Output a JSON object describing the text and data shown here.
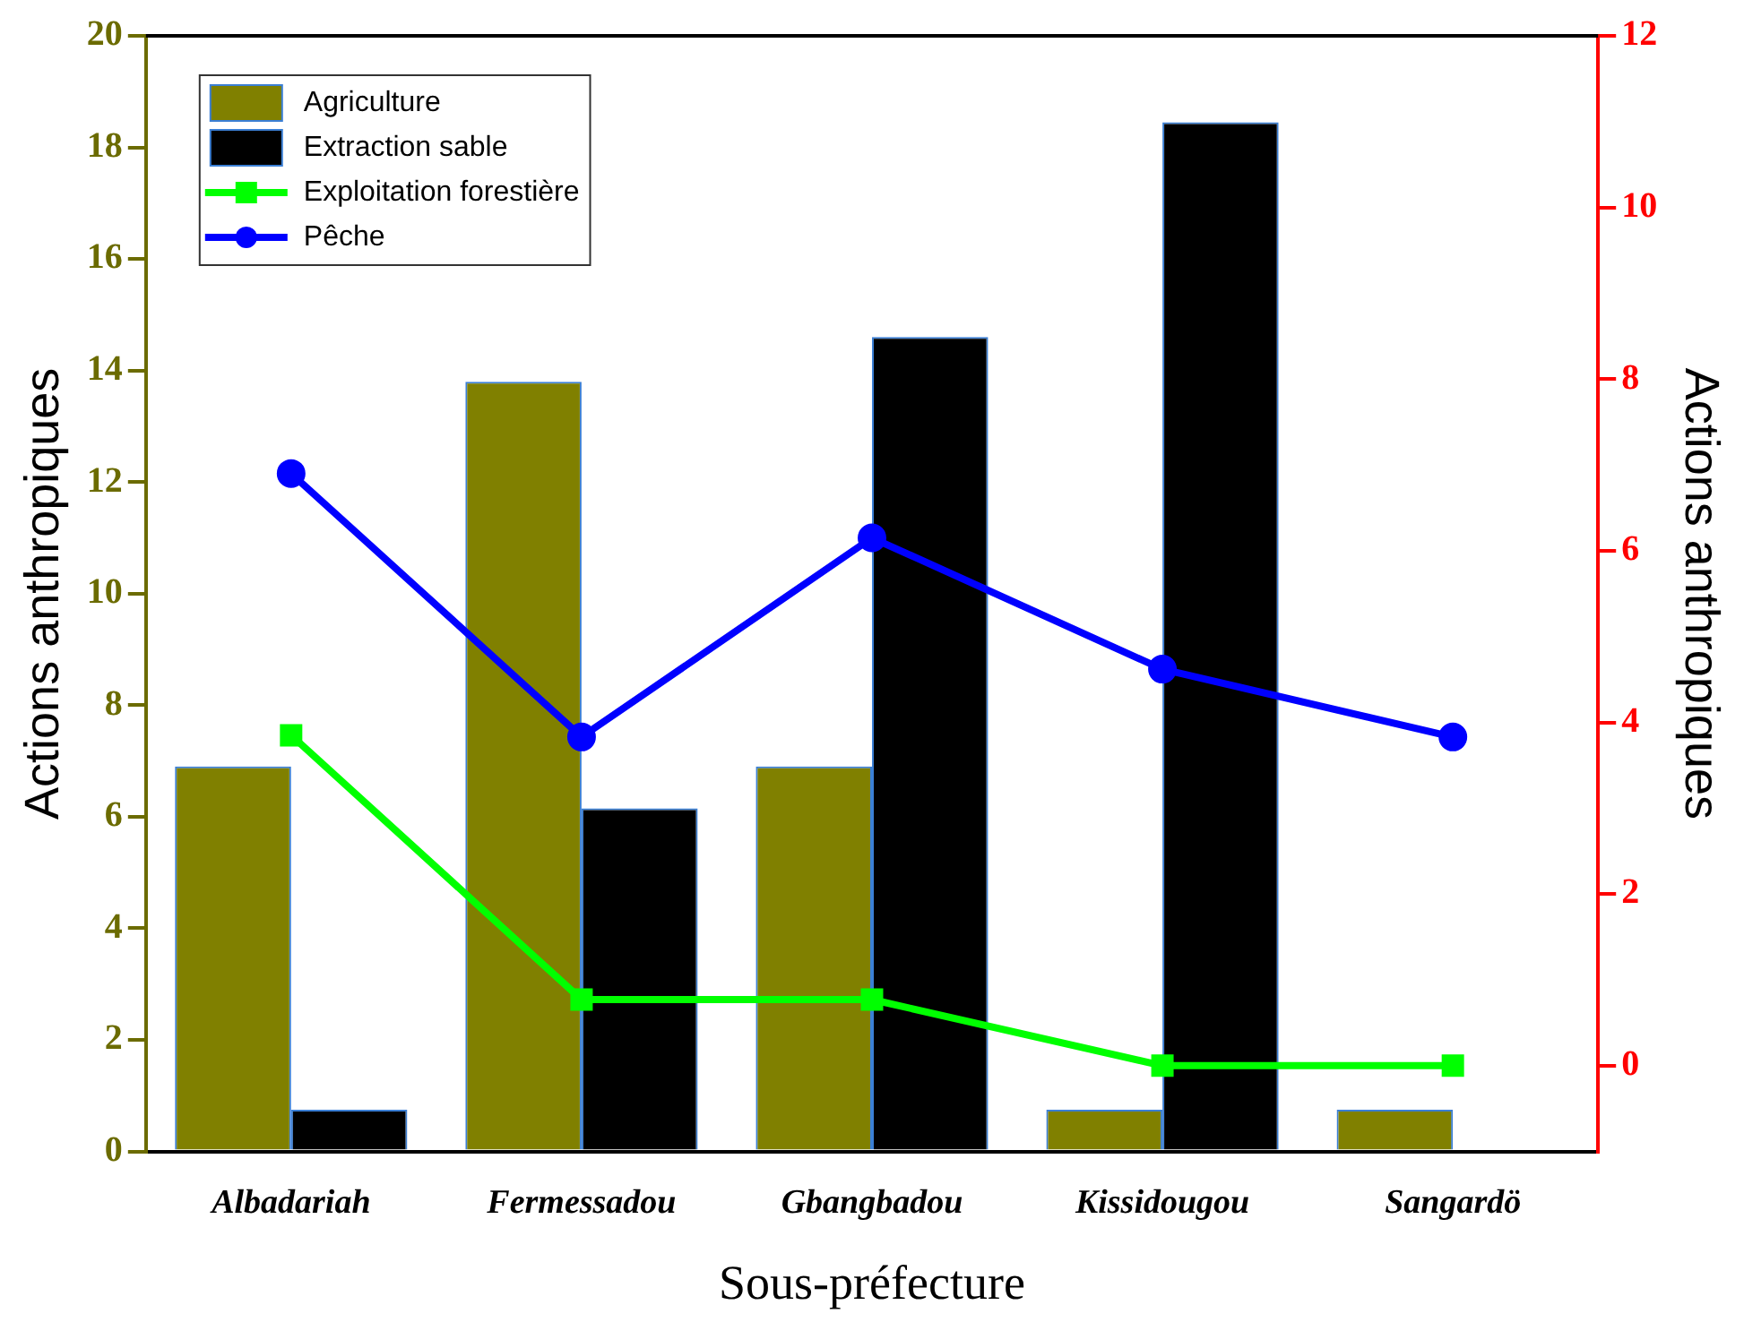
{
  "chart_data": {
    "type": "bar",
    "xlabel": "Sous-préfecture",
    "ylabel": "Actions anthropiques",
    "y2label": "Actions anthropiques",
    "categories": [
      "Albadariah",
      "Fermessadou",
      "Gbangbadou",
      "Kissidougou",
      "Sangardö"
    ],
    "series": [
      {
        "name": "Agriculture",
        "color": "#808000",
        "values": [
          6.9,
          13.8,
          6.9,
          0.75,
          0.75
        ]
      },
      {
        "name": "Extraction sable",
        "color": "#000000",
        "values": [
          0.75,
          6.15,
          14.6,
          18.45,
          0
        ]
      },
      {
        "name": "Exploitation forestière",
        "type": "line",
        "axis": "y2",
        "color": "#00ff00",
        "marker": "square",
        "values": [
          3.85,
          0.77,
          0.77,
          0,
          0
        ]
      },
      {
        "name": "Pêche",
        "type": "line",
        "axis": "y2",
        "color": "#0000ff",
        "marker": "circle",
        "values": [
          6.9,
          3.83,
          6.15,
          4.62,
          3.83
        ]
      }
    ],
    "ylim": [
      0,
      20
    ],
    "yticks": [
      0,
      2,
      4,
      6,
      8,
      10,
      12,
      14,
      16,
      18,
      20
    ],
    "y2lim": [
      -1,
      12
    ],
    "y2ticks": [
      0,
      2,
      4,
      6,
      8,
      10,
      12
    ],
    "grid": false,
    "legend": "top left"
  }
}
